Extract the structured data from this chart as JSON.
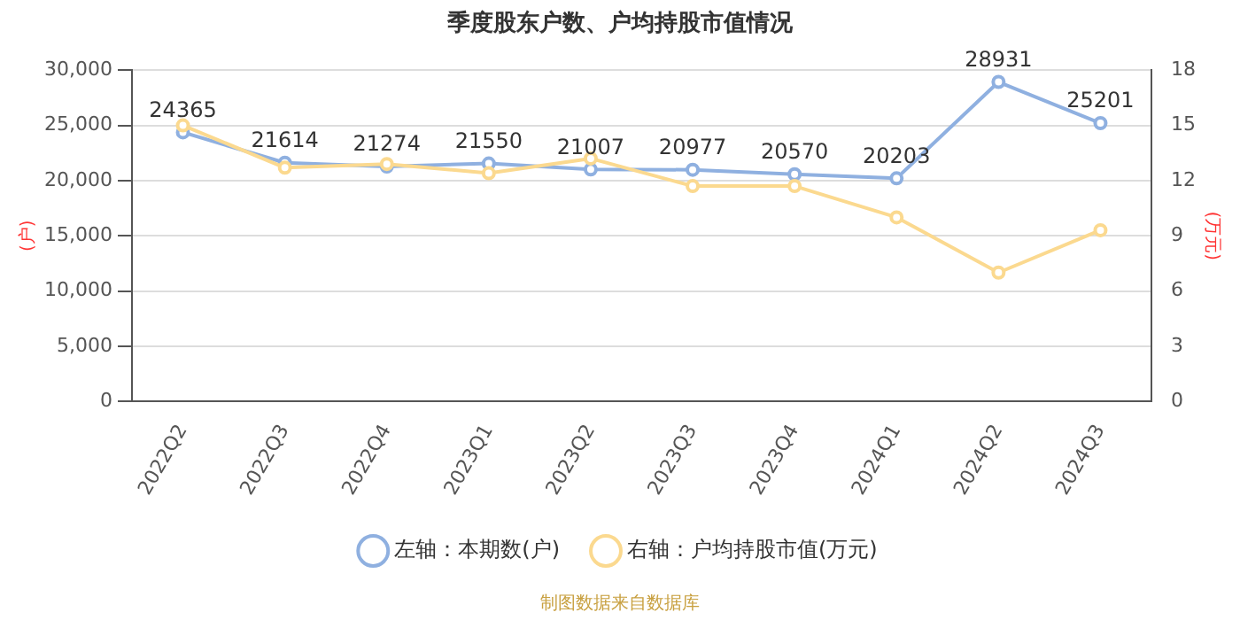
{
  "chart_data": {
    "type": "line",
    "title": "季度股东户数、户均持股市值情况",
    "ylabel": "(户)",
    "y2label": "(万元)",
    "categories": [
      "2022Q2",
      "2022Q3",
      "2022Q4",
      "2023Q1",
      "2023Q2",
      "2023Q3",
      "2023Q4",
      "2024Q1",
      "2024Q2",
      "2024Q3"
    ],
    "series": [
      {
        "name": "左轴：本期数(户)",
        "color": "#8fb0e0",
        "values": [
          24365,
          21614,
          21274,
          21550,
          21007,
          20977,
          20570,
          20203,
          28931,
          25201
        ],
        "value_labels": [
          "24365",
          "21614",
          "21274",
          "21550",
          "21007",
          "20977",
          "20570",
          "20203",
          "28931",
          "25201"
        ]
      },
      {
        "name": "右轴：户均持股市值(万元)",
        "color": "#fbd98f",
        "axis": "y2",
        "values": [
          15.0,
          12.7,
          12.9,
          12.4,
          13.2,
          11.7,
          11.7,
          10.0,
          7.0,
          9.3
        ]
      }
    ],
    "ylim": [
      0,
      30000
    ],
    "yticks": [
      {
        "value": 0,
        "label": "0"
      },
      {
        "value": 5000,
        "label": "5,000"
      },
      {
        "value": 10000,
        "label": "10,000"
      },
      {
        "value": 15000,
        "label": "15,000"
      },
      {
        "value": 20000,
        "label": "20,000"
      },
      {
        "value": 25000,
        "label": "25,000"
      },
      {
        "value": 30000,
        "label": "30,000"
      }
    ],
    "y2lim": [
      0,
      18
    ],
    "y2ticks": [
      0,
      3,
      6,
      9,
      12,
      15,
      18
    ],
    "grid": "y",
    "legend": "bottom",
    "marker": "circle",
    "line_style": "solid",
    "annotations": [
      "制图数据来自数据库"
    ]
  }
}
